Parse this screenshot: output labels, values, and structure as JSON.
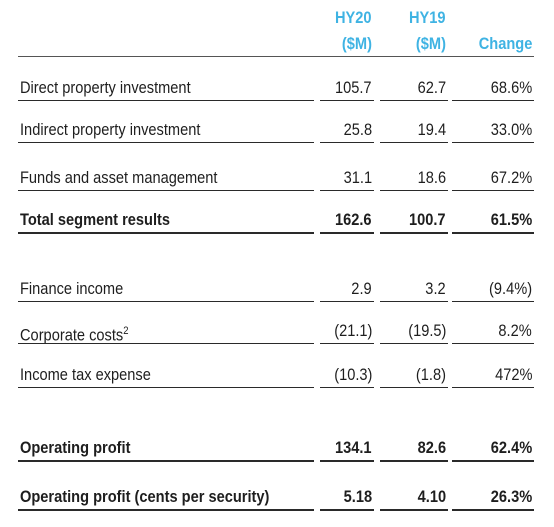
{
  "table": {
    "columns": [
      {
        "name": "HY20",
        "unit": "($M)"
      },
      {
        "name": "HY19",
        "unit": "($M)"
      },
      {
        "name": "Change"
      }
    ],
    "rows": [
      {
        "label": "Direct property investment",
        "cells": [
          "105.7",
          "62.7",
          "68.6%"
        ],
        "bold": false
      },
      {
        "label": "Indirect property investment",
        "cells": [
          "25.8",
          "19.4",
          "33.0%"
        ],
        "bold": false
      },
      {
        "label": "Funds and asset management",
        "cells": [
          "31.1",
          "18.6",
          "67.2%"
        ],
        "bold": false
      },
      {
        "label": "Total segment results",
        "cells": [
          "162.6",
          "100.7",
          "61.5%"
        ],
        "bold": true
      },
      {
        "label": "Finance income",
        "cells": [
          "2.9",
          "3.2",
          "(9.4%)"
        ],
        "bold": false
      },
      {
        "label": "Corporate costs",
        "note": "2",
        "cells": [
          "(21.1)",
          "(19.5)",
          "8.2%"
        ],
        "bold": false
      },
      {
        "label": "Income tax expense",
        "cells": [
          "(10.3)",
          "(1.8)",
          "472%"
        ],
        "bold": false
      },
      {
        "label": "Operating profit",
        "cells": [
          "134.1",
          "82.6",
          "62.4%"
        ],
        "bold": true
      },
      {
        "label": "Operating profit (cents per security)",
        "cells": [
          "5.18",
          "4.10",
          "26.3%"
        ],
        "bold": true
      }
    ]
  }
}
